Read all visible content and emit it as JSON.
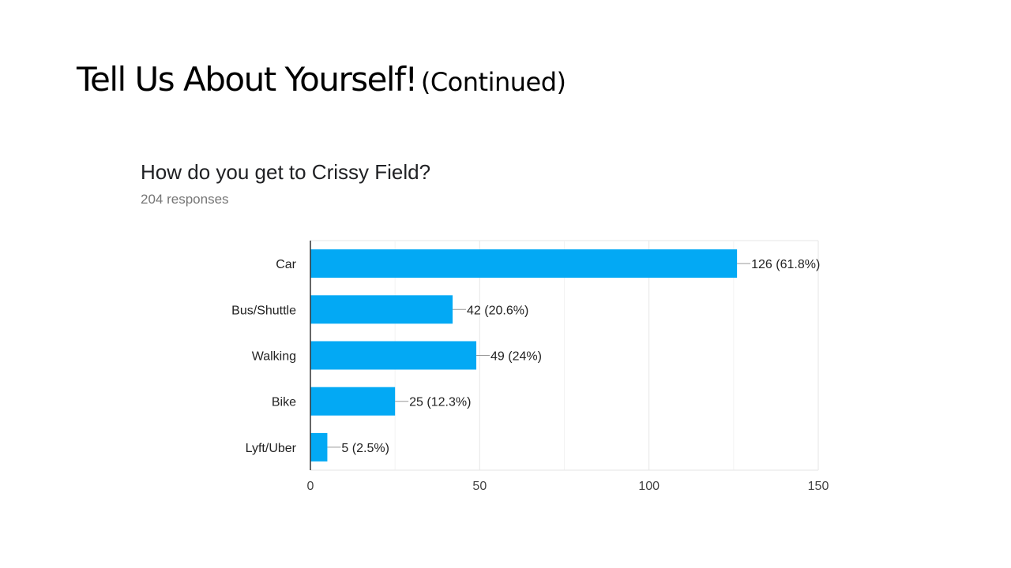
{
  "slide": {
    "title_main": "Tell Us About Yourself!",
    "title_sub": "(Continued)"
  },
  "question": {
    "title": "How do you get to Crissy Field?",
    "responses": "204 responses"
  },
  "chart_data": {
    "type": "bar",
    "orientation": "horizontal",
    "categories": [
      "Car",
      "Bus/Shuttle",
      "Walking",
      "Bike",
      "Lyft/Uber"
    ],
    "values": [
      126,
      42,
      49,
      25,
      5
    ],
    "data_labels": [
      "126 (61.8%)",
      "42 (20.6%)",
      "49 (24%)",
      "25 (12.3%)",
      "5 (2.5%)"
    ],
    "xlim": [
      0,
      150
    ],
    "xticks": [
      0,
      50,
      100,
      150
    ],
    "grid": true,
    "bar_color": "#03a9f4"
  }
}
